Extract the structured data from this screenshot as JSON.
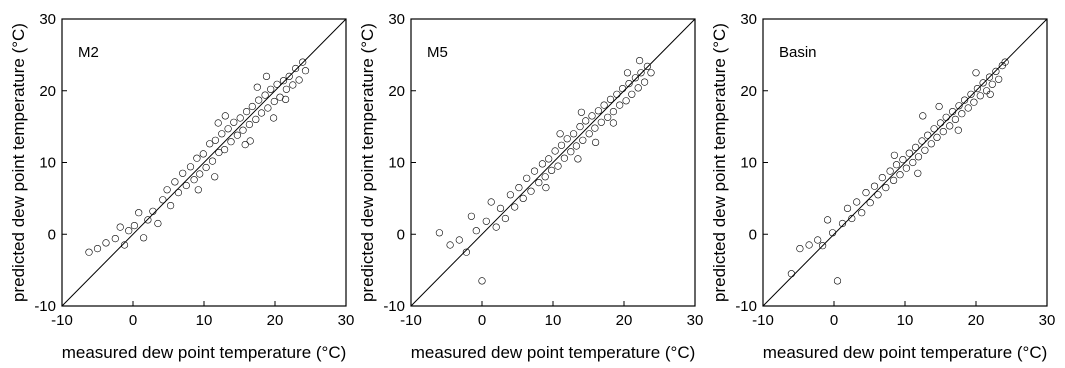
{
  "figure": {
    "xlabel": "measured dew point temperature (°C)",
    "ylabel": "predicted dew point temperature (°C)"
  },
  "chart_data": [
    {
      "type": "scatter",
      "panel_label": "M2",
      "xlabel": "measured dew point temperature (°C)",
      "ylabel": "predicted dew point temperature (°C)",
      "xlim": [
        -10,
        30
      ],
      "ylim": [
        -10,
        30
      ],
      "xticks": [
        -10,
        0,
        10,
        20,
        30
      ],
      "yticks": [
        -10,
        0,
        10,
        20,
        30
      ],
      "reference_line": "1:1",
      "marker": "open-circle",
      "grid": false,
      "legend": "none",
      "x": [
        -6.2,
        -5.0,
        -3.8,
        -2.5,
        -1.8,
        -1.2,
        -0.6,
        0.2,
        0.8,
        1.5,
        2.1,
        2.8,
        3.5,
        4.2,
        4.8,
        5.3,
        5.9,
        6.4,
        7.0,
        7.5,
        8.1,
        8.6,
        9.0,
        9.4,
        9.9,
        10.3,
        10.8,
        11.2,
        11.6,
        12.1,
        12.5,
        12.9,
        13.4,
        13.8,
        14.2,
        14.7,
        15.1,
        15.5,
        16.0,
        16.4,
        16.8,
        17.3,
        17.7,
        18.1,
        18.6,
        19.0,
        19.4,
        19.9,
        20.3,
        20.7,
        21.2,
        21.6,
        22.0,
        22.5,
        22.9,
        23.4,
        23.9,
        24.3,
        9.2,
        11.5,
        13.0,
        15.8,
        17.5,
        19.8,
        21.5,
        12.0,
        16.5,
        18.8
      ],
      "y": [
        -2.5,
        -2.0,
        -1.2,
        -0.6,
        1.0,
        -1.5,
        0.5,
        1.2,
        3.0,
        -0.5,
        2.0,
        3.2,
        1.5,
        4.8,
        6.2,
        4.0,
        7.3,
        5.8,
        8.5,
        6.8,
        9.4,
        7.6,
        10.6,
        8.4,
        11.2,
        9.3,
        12.6,
        10.2,
        13.1,
        11.4,
        14.0,
        11.8,
        14.7,
        12.9,
        15.6,
        13.8,
        16.2,
        14.5,
        17.1,
        15.3,
        17.8,
        16.0,
        18.7,
        16.9,
        19.4,
        17.6,
        20.2,
        18.5,
        20.9,
        19.1,
        21.4,
        20.2,
        22.0,
        20.8,
        23.1,
        21.5,
        24.0,
        22.8,
        6.2,
        8.0,
        16.5,
        12.5,
        20.5,
        16.2,
        18.8,
        15.5,
        13.0,
        22.0
      ]
    },
    {
      "type": "scatter",
      "panel_label": "M5",
      "xlabel": "measured dew point temperature (°C)",
      "ylabel": "predicted dew point temperature (°C)",
      "xlim": [
        -10,
        30
      ],
      "ylim": [
        -10,
        30
      ],
      "xticks": [
        -10,
        0,
        10,
        20,
        30
      ],
      "yticks": [
        -10,
        0,
        10,
        20,
        30
      ],
      "reference_line": "1:1",
      "marker": "open-circle",
      "grid": false,
      "legend": "none",
      "x": [
        -6.0,
        -4.5,
        -3.2,
        -2.2,
        -1.5,
        -0.8,
        0.0,
        0.6,
        1.3,
        2.0,
        2.6,
        3.3,
        4.0,
        4.6,
        5.2,
        5.8,
        6.3,
        6.9,
        7.4,
        8.0,
        8.5,
        8.9,
        9.4,
        9.8,
        10.3,
        10.7,
        11.2,
        11.6,
        12.0,
        12.5,
        12.9,
        13.3,
        13.8,
        14.2,
        14.6,
        15.1,
        15.5,
        15.9,
        16.4,
        16.8,
        17.2,
        17.7,
        18.1,
        18.5,
        19.0,
        19.4,
        19.8,
        20.3,
        20.7,
        21.1,
        21.6,
        22.0,
        22.4,
        22.9,
        23.3,
        23.8,
        9.0,
        11.0,
        14.0,
        16.0,
        18.5,
        20.5,
        13.5,
        22.2
      ],
      "y": [
        0.2,
        -1.5,
        -0.8,
        -2.5,
        2.5,
        0.5,
        -6.5,
        1.8,
        4.5,
        1.0,
        3.6,
        2.2,
        5.5,
        3.8,
        6.5,
        5.0,
        7.8,
        6.0,
        8.8,
        7.2,
        9.8,
        8.0,
        10.5,
        8.9,
        11.6,
        9.5,
        12.4,
        10.6,
        13.3,
        11.5,
        14.0,
        12.3,
        15.0,
        13.1,
        15.8,
        14.0,
        16.5,
        14.8,
        17.2,
        15.6,
        18.0,
        16.3,
        18.8,
        17.1,
        19.5,
        18.0,
        20.3,
        18.6,
        21.0,
        19.5,
        21.8,
        20.4,
        22.5,
        21.2,
        23.4,
        22.5,
        6.5,
        14.0,
        17.0,
        12.8,
        15.5,
        22.5,
        10.5,
        24.2
      ]
    },
    {
      "type": "scatter",
      "panel_label": "Basin",
      "xlabel": "measured dew point temperature (°C)",
      "ylabel": "predicted dew point temperature (°C)",
      "xlim": [
        -10,
        30
      ],
      "ylim": [
        -10,
        30
      ],
      "xticks": [
        -10,
        0,
        10,
        20,
        30
      ],
      "yticks": [
        -10,
        0,
        10,
        20,
        30
      ],
      "reference_line": "1:1",
      "marker": "open-circle",
      "grid": false,
      "legend": "none",
      "x": [
        -6.0,
        -4.8,
        -3.5,
        -2.3,
        -1.6,
        -0.9,
        -0.2,
        0.5,
        1.2,
        1.9,
        2.5,
        3.2,
        3.9,
        4.5,
        5.1,
        5.7,
        6.2,
        6.8,
        7.3,
        7.9,
        8.4,
        8.8,
        9.3,
        9.7,
        10.2,
        10.6,
        11.1,
        11.5,
        11.9,
        12.4,
        12.8,
        13.2,
        13.7,
        14.1,
        14.5,
        15.0,
        15.4,
        15.8,
        16.3,
        16.7,
        17.1,
        17.6,
        18.0,
        18.4,
        18.9,
        19.3,
        19.7,
        20.2,
        20.6,
        21.0,
        21.5,
        21.9,
        22.3,
        22.8,
        23.2,
        23.7,
        24.1,
        8.5,
        11.8,
        14.8,
        17.5,
        20.0,
        22.0,
        12.5
      ],
      "y": [
        -5.5,
        -2.0,
        -1.5,
        -0.8,
        -1.6,
        2.0,
        0.2,
        -6.5,
        1.5,
        3.6,
        2.2,
        4.5,
        3.0,
        5.8,
        4.4,
        6.7,
        5.5,
        7.9,
        6.5,
        8.8,
        7.5,
        9.7,
        8.3,
        10.4,
        9.2,
        11.3,
        10.0,
        12.1,
        10.8,
        13.0,
        11.7,
        13.8,
        12.6,
        14.7,
        13.5,
        15.5,
        14.3,
        16.3,
        15.1,
        17.1,
        16.0,
        17.9,
        16.8,
        18.7,
        17.6,
        19.5,
        18.4,
        20.3,
        19.3,
        21.1,
        20.0,
        21.9,
        20.9,
        22.7,
        21.6,
        23.5,
        24.0,
        11.0,
        8.5,
        17.8,
        14.5,
        22.5,
        19.5,
        16.5
      ]
    }
  ]
}
